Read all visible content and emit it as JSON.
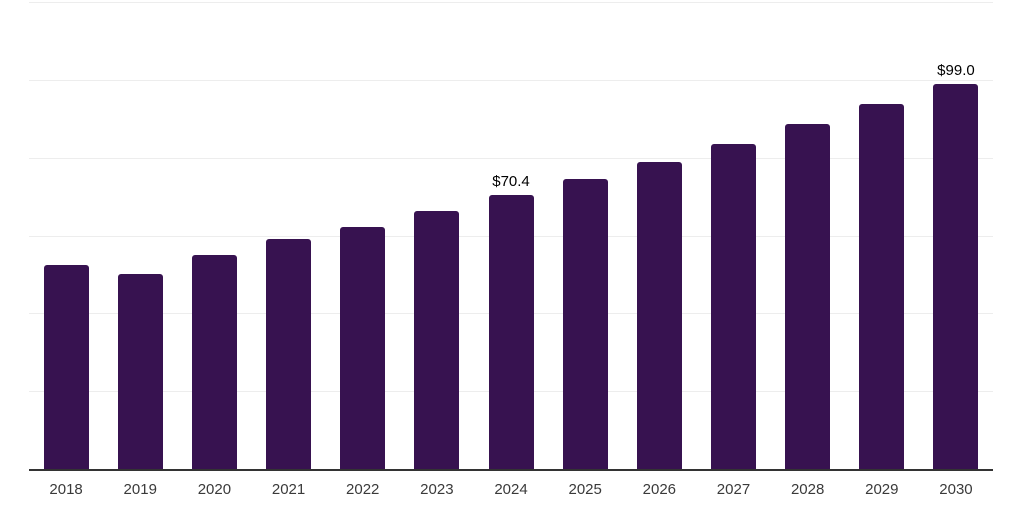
{
  "chart_data": {
    "type": "bar",
    "title": "",
    "xlabel": "",
    "ylabel": "",
    "categories": [
      "2018",
      "2019",
      "2020",
      "2021",
      "2022",
      "2023",
      "2024",
      "2025",
      "2026",
      "2027",
      "2028",
      "2029",
      "2030"
    ],
    "values": [
      52.3,
      50.2,
      55.1,
      59.0,
      62.3,
      66.3,
      70.4,
      74.4,
      78.8,
      83.5,
      88.6,
      93.8,
      99.0
    ],
    "value_labels": [
      "",
      "",
      "",
      "",
      "",
      "",
      "$70.4",
      "",
      "",
      "",
      "",
      "",
      "$99.0"
    ],
    "ylim": [
      0,
      120
    ],
    "ytick_step": 20,
    "grid": true,
    "legend_position": "none",
    "bar_color": "#371250",
    "gridline_color": "#ededed",
    "axis_line_color": "#333333",
    "value_label_color": "#000000",
    "tick_label_color": "#3a3a3a"
  }
}
